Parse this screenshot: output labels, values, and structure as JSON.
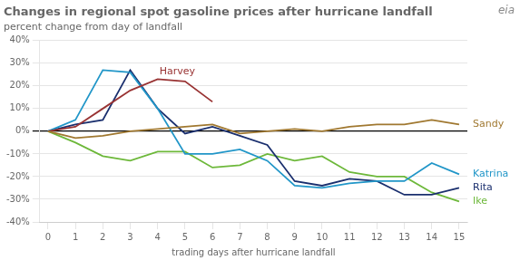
{
  "chart_data": {
    "type": "line",
    "title": "Changes in regional spot gasoline prices after hurricane landfall",
    "subtitle": "percent change from day of landfall",
    "xlabel": "trading days after hurricane landfall",
    "x": [
      0,
      1,
      2,
      3,
      4,
      5,
      6,
      7,
      8,
      9,
      10,
      11,
      12,
      13,
      14,
      15
    ],
    "series": [
      {
        "name": "Sandy",
        "color": "#a07830",
        "values": [
          0,
          -3,
          -2,
          0,
          1,
          2,
          3,
          -1,
          0,
          1,
          0,
          2,
          3,
          3,
          5,
          3
        ]
      },
      {
        "name": "Harvey",
        "color": "#993333",
        "values": [
          0,
          2,
          10,
          18,
          23,
          22,
          13,
          null,
          null,
          null,
          null,
          null,
          null,
          null,
          null,
          null
        ]
      },
      {
        "name": "Katrina",
        "color": "#2196c8",
        "values": [
          0,
          5,
          27,
          26,
          10,
          -10,
          -10,
          -8,
          -13,
          -24,
          -25,
          -23,
          -22,
          -22,
          -14,
          -19
        ]
      },
      {
        "name": "Rita",
        "color": "#1a2f6e",
        "values": [
          0,
          3,
          5,
          27,
          10,
          -1,
          2,
          -2,
          -6,
          -22,
          -24,
          -21,
          -22,
          -28,
          -28,
          -25
        ]
      },
      {
        "name": "Ike",
        "color": "#6db83a",
        "values": [
          0,
          -5,
          -11,
          -13,
          -9,
          -9,
          -16,
          -15,
          -10,
          -13,
          -11,
          -18,
          -20,
          -20,
          -27,
          -31
        ]
      }
    ],
    "xlim": [
      -0.3,
      15.3
    ],
    "xticks": [
      0,
      1,
      2,
      3,
      4,
      5,
      6,
      7,
      8,
      9,
      10,
      11,
      12,
      13,
      14,
      15
    ],
    "ylim": [
      -40,
      40
    ],
    "yticks": [
      {
        "value": -40,
        "label": "-40%"
      },
      {
        "value": -30,
        "label": "-30%"
      },
      {
        "value": -20,
        "label": "-20%"
      },
      {
        "value": -10,
        "label": "-10%"
      },
      {
        "value": 0,
        "label": "0%"
      },
      {
        "value": 10,
        "label": "10%"
      },
      {
        "value": 20,
        "label": "20%"
      },
      {
        "value": 30,
        "label": "30%"
      },
      {
        "value": 40,
        "label": "40%"
      }
    ],
    "grid": true,
    "annotations": [
      "eia"
    ]
  }
}
